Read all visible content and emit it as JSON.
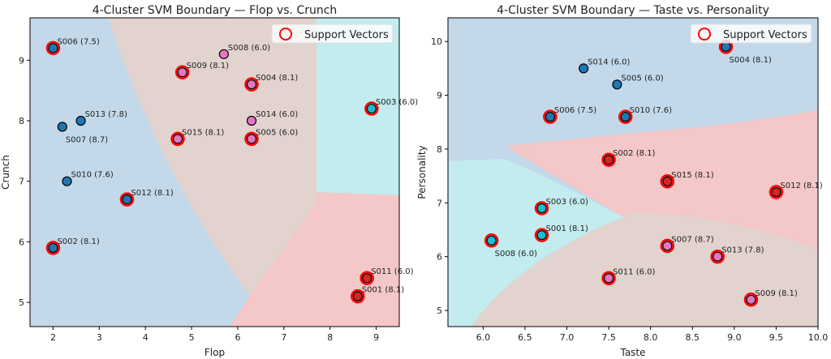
{
  "chart_data": [
    {
      "type": "scatter",
      "title": "4-Cluster SVM Boundary — Flop vs. Crunch",
      "xlabel": "Flop",
      "ylabel": "Crunch",
      "xlim": [
        1.5,
        9.5
      ],
      "ylim": [
        4.6,
        9.7
      ],
      "xticks": [
        2,
        3,
        4,
        5,
        6,
        7,
        8,
        9
      ],
      "yticks": [
        5,
        6,
        7,
        8,
        9
      ],
      "legend": {
        "label": "Support Vectors",
        "placement": "top-right"
      },
      "points": [
        {
          "id": "S006 (7.5)",
          "x": 2.0,
          "y": 9.2,
          "cls": "blue",
          "sv": true
        },
        {
          "id": "S008 (6.0)",
          "x": 5.7,
          "y": 9.1,
          "cls": "pink",
          "sv": false
        },
        {
          "id": "S009 (8.1)",
          "x": 4.8,
          "y": 8.8,
          "cls": "pink",
          "sv": true
        },
        {
          "id": "S004 (8.1)",
          "x": 6.3,
          "y": 8.6,
          "cls": "pink",
          "sv": true
        },
        {
          "id": "S003 (6.0)",
          "x": 8.9,
          "y": 8.2,
          "cls": "cyan",
          "sv": true
        },
        {
          "id": "S014 (6.0)",
          "x": 6.3,
          "y": 8.0,
          "cls": "pink",
          "sv": false
        },
        {
          "id": "S013 (7.8)",
          "x": 2.6,
          "y": 8.0,
          "cls": "blue",
          "sv": false
        },
        {
          "id": "S007 (8.7)",
          "x": 2.2,
          "y": 7.9,
          "cls": "blue",
          "sv": false
        },
        {
          "id": "S015 (8.1)",
          "x": 4.7,
          "y": 7.7,
          "cls": "pink",
          "sv": true
        },
        {
          "id": "S005 (6.0)",
          "x": 6.3,
          "y": 7.7,
          "cls": "pink",
          "sv": true
        },
        {
          "id": "S010 (7.6)",
          "x": 2.3,
          "y": 7.0,
          "cls": "blue",
          "sv": false
        },
        {
          "id": "S012 (8.1)",
          "x": 3.6,
          "y": 6.7,
          "cls": "blue",
          "sv": true
        },
        {
          "id": "S002 (8.1)",
          "x": 2.0,
          "y": 5.9,
          "cls": "blue",
          "sv": true
        },
        {
          "id": "S011 (6.0)",
          "x": 8.8,
          "y": 5.4,
          "cls": "red",
          "sv": true
        },
        {
          "id": "S001 (8.1)",
          "x": 8.6,
          "y": 5.1,
          "cls": "red",
          "sv": true
        }
      ]
    },
    {
      "type": "scatter",
      "title": "4-Cluster SVM Boundary — Taste vs. Personality",
      "xlabel": "Taste",
      "ylabel": "Personality",
      "xlim": [
        5.58,
        10.0
      ],
      "ylim": [
        4.7,
        10.44
      ],
      "xticks": [
        6.0,
        6.5,
        7.0,
        7.5,
        8.0,
        8.5,
        9.0,
        9.5,
        10.0
      ],
      "yticks": [
        5,
        6,
        7,
        8,
        9,
        10
      ],
      "legend": {
        "label": "Support Vectors",
        "placement": "top-right"
      },
      "points": [
        {
          "id": "S004 (8.1)",
          "x": 8.9,
          "y": 9.9,
          "cls": "blue",
          "sv": true
        },
        {
          "id": "S014 (6.0)",
          "x": 7.2,
          "y": 9.5,
          "cls": "blue",
          "sv": false
        },
        {
          "id": "S005 (6.0)",
          "x": 7.6,
          "y": 9.2,
          "cls": "blue",
          "sv": false
        },
        {
          "id": "S006 (7.5)",
          "x": 6.8,
          "y": 8.6,
          "cls": "blue",
          "sv": true
        },
        {
          "id": "S010 (7.6)",
          "x": 7.7,
          "y": 8.6,
          "cls": "blue",
          "sv": true
        },
        {
          "id": "S002 (8.1)",
          "x": 7.5,
          "y": 7.8,
          "cls": "red",
          "sv": true
        },
        {
          "id": "S015 (8.1)",
          "x": 8.2,
          "y": 7.4,
          "cls": "red",
          "sv": true
        },
        {
          "id": "S012 (8.1)",
          "x": 9.5,
          "y": 7.2,
          "cls": "red",
          "sv": true
        },
        {
          "id": "S003 (6.0)",
          "x": 6.7,
          "y": 6.9,
          "cls": "cyan",
          "sv": true
        },
        {
          "id": "S001 (8.1)",
          "x": 6.7,
          "y": 6.4,
          "cls": "cyan",
          "sv": true
        },
        {
          "id": "S008 (6.0)",
          "x": 6.1,
          "y": 6.3,
          "cls": "cyan",
          "sv": true
        },
        {
          "id": "S007 (8.7)",
          "x": 8.2,
          "y": 6.2,
          "cls": "pink",
          "sv": true
        },
        {
          "id": "S013 (7.8)",
          "x": 8.8,
          "y": 6.0,
          "cls": "pink",
          "sv": true
        },
        {
          "id": "S011 (6.0)",
          "x": 7.5,
          "y": 5.6,
          "cls": "pink",
          "sv": true
        },
        {
          "id": "S009 (8.1)",
          "x": 9.2,
          "y": 5.2,
          "cls": "pink",
          "sv": true
        }
      ]
    }
  ],
  "colors": {
    "blue": "#1f77b4",
    "pink": "#e377c2",
    "cyan": "#17becf",
    "red": "#d62728",
    "sv": "#ff0000"
  }
}
